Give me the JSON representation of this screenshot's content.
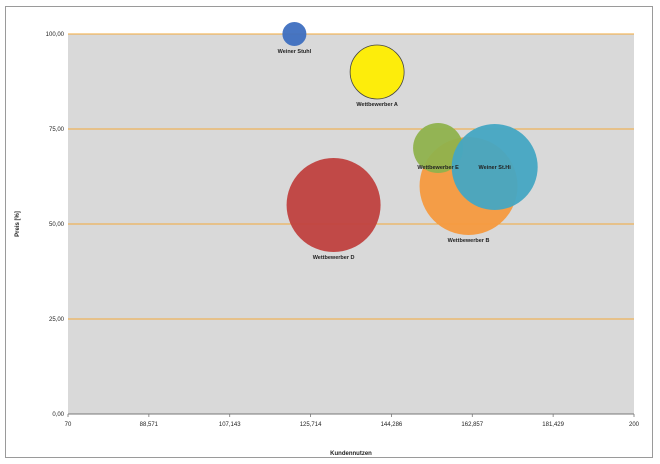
{
  "chart_data": {
    "type": "scatter",
    "subtype": "bubble",
    "xlabel": "Kundennutzen",
    "ylabel": "Preis [%]",
    "xlim": [
      70,
      200
    ],
    "ylim": [
      0,
      100
    ],
    "x_ticks": [
      "70",
      "88,571",
      "107,143",
      "125,714",
      "144,286",
      "162,857",
      "181,429",
      "200"
    ],
    "y_ticks": [
      "0,00",
      "25,00",
      "50,00",
      "75,00",
      "100,00"
    ],
    "grid": "horizontal",
    "grid_color": "#f2a93b",
    "plot_background": "#d9d9d9",
    "series": [
      {
        "name": "Wettbewerber D",
        "x": 131,
        "y": 55,
        "size": 47,
        "color": "#c0413f"
      },
      {
        "name": "Wettbewerber B",
        "x": 162,
        "y": 60,
        "size": 49,
        "color": "#f59a3f"
      },
      {
        "name": "Wettbewerber A",
        "x": 141,
        "y": 90,
        "size": 27,
        "color": "#ffee00"
      },
      {
        "name": "Wettbewerber E",
        "x": 155,
        "y": 70,
        "size": 25,
        "color": "#8fb24d"
      },
      {
        "name": "Weiner St.Hi",
        "x": 168,
        "y": 65,
        "size": 43,
        "color": "#45a7c3"
      },
      {
        "name": "Weiner Stuhl",
        "x": 122,
        "y": 100,
        "size": 12,
        "color": "#3e6fc0"
      }
    ]
  }
}
